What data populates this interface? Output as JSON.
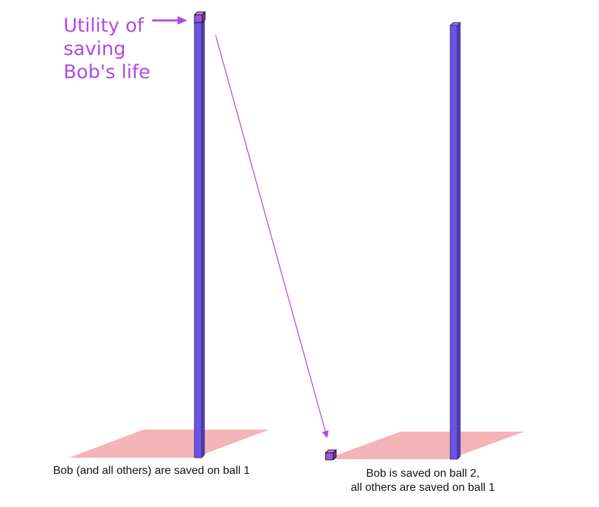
{
  "annotation": {
    "lines": [
      "Utility of",
      "saving",
      "Bob's life"
    ]
  },
  "captions": {
    "left": [
      "Bob (and all others) are saved on ball 1"
    ],
    "right": [
      "Bob is saved on ball 2,",
      "all others are saved on ball 1"
    ]
  },
  "colors": {
    "accent": "#b04ae6",
    "bar": "#6d55e0",
    "bar_edge": "#3a2a90",
    "floor": "#f4b4b8",
    "small_cube": "#a052e0"
  }
}
